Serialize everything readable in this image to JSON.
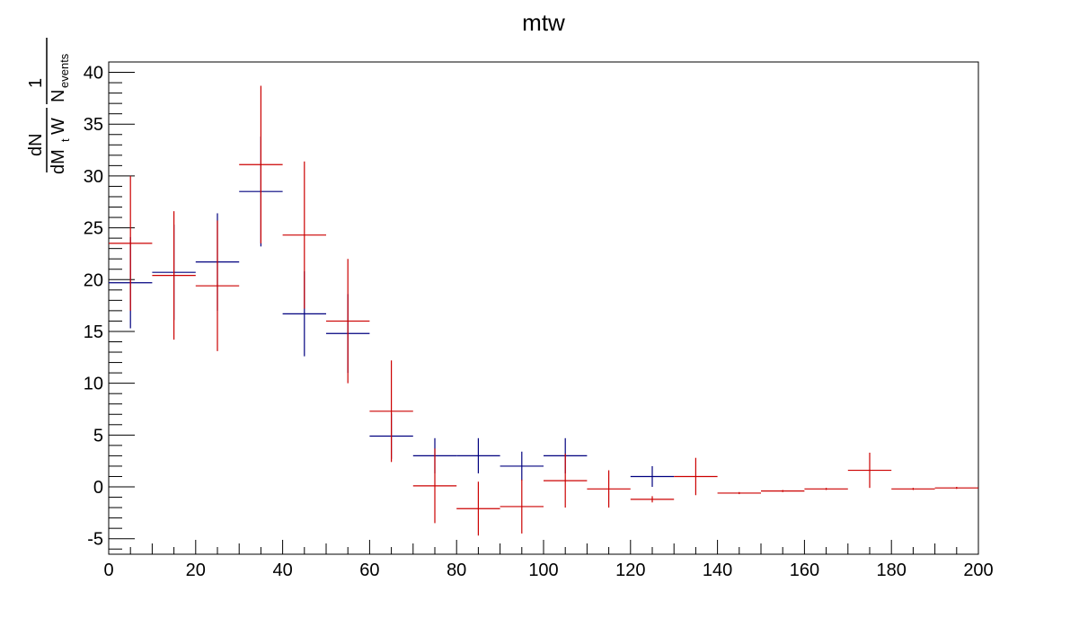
{
  "chart_data": {
    "type": "scatter",
    "title": "mtw",
    "xlabel": "",
    "ylabel": {
      "dN": "dN",
      "dM": "dM",
      "t": "t",
      "W": "W",
      "one": "1",
      "N": "N",
      "events": "events"
    },
    "xlim": [
      0,
      200
    ],
    "ylim": [
      -6.5,
      41
    ],
    "x_ticks": [
      0,
      20,
      40,
      60,
      80,
      100,
      120,
      140,
      160,
      180,
      200
    ],
    "y_ticks": [
      -5,
      0,
      5,
      10,
      15,
      20,
      25,
      30,
      35,
      40
    ],
    "grid": false,
    "legend": "none",
    "bin_width": 10,
    "series": [
      {
        "color": "#00007f",
        "x": [
          5,
          15,
          25,
          35,
          45,
          55,
          65,
          75,
          85,
          95,
          105,
          125
        ],
        "y": [
          19.7,
          20.7,
          21.7,
          28.5,
          16.7,
          14.8,
          4.9,
          3.0,
          3.0,
          2.0,
          3.0,
          1.0
        ],
        "err": [
          4.4,
          4.6,
          4.7,
          5.3,
          4.1,
          3.8,
          2.2,
          1.7,
          1.7,
          1.4,
          1.7,
          1.0
        ]
      },
      {
        "color": "#cc0000",
        "x": [
          5,
          15,
          25,
          35,
          45,
          55,
          65,
          75,
          85,
          95,
          105,
          115,
          125,
          135,
          145,
          155,
          165,
          175,
          185,
          195
        ],
        "y": [
          23.5,
          20.4,
          19.4,
          31.1,
          24.3,
          16.0,
          7.3,
          0.1,
          -2.1,
          -1.9,
          0.6,
          -0.2,
          -1.2,
          1.0,
          -0.6,
          -0.4,
          -0.2,
          1.6,
          -0.2,
          -0.1
        ],
        "err": [
          6.5,
          6.2,
          6.3,
          7.6,
          7.1,
          6.0,
          4.9,
          3.6,
          2.6,
          2.6,
          2.6,
          1.8,
          0.3,
          1.8,
          0.1,
          0.1,
          0.1,
          1.7,
          0.1,
          0.1
        ]
      }
    ]
  }
}
